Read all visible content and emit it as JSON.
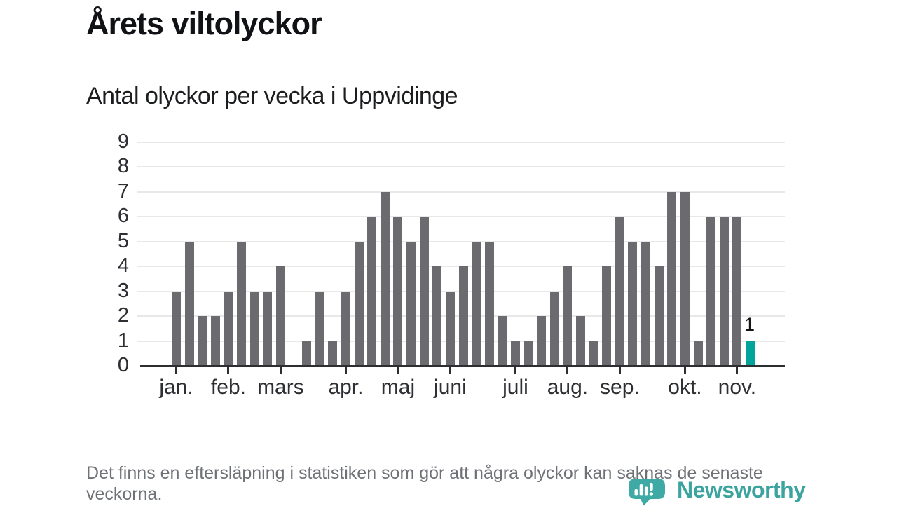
{
  "header": {
    "title": "Årets viltolyckor",
    "subtitle": "Antal olyckor per vecka i Uppvidinge"
  },
  "chart_data": {
    "type": "bar",
    "title": "Årets viltolyckor",
    "subtitle": "Antal olyckor per vecka i Uppvidinge",
    "x_unit": "vecka (week)",
    "ylabel": "",
    "ylim": [
      0,
      9
    ],
    "y_ticks": [
      0,
      1,
      2,
      3,
      4,
      5,
      6,
      7,
      8,
      9
    ],
    "grid": "horizontal",
    "values": [
      3,
      5,
      2,
      2,
      3,
      5,
      3,
      3,
      4,
      0,
      1,
      3,
      1,
      3,
      5,
      6,
      7,
      6,
      5,
      6,
      4,
      3,
      4,
      5,
      5,
      2,
      1,
      1,
      2,
      3,
      4,
      2,
      1,
      4,
      6,
      5,
      5,
      4,
      7,
      7,
      1,
      6,
      6,
      6,
      1
    ],
    "month_ticks": [
      {
        "label": "jan.",
        "week_index": 0
      },
      {
        "label": "feb.",
        "week_index": 4
      },
      {
        "label": "mars",
        "week_index": 8
      },
      {
        "label": "apr.",
        "week_index": 13
      },
      {
        "label": "maj",
        "week_index": 17
      },
      {
        "label": "juni",
        "week_index": 21
      },
      {
        "label": "juli",
        "week_index": 26
      },
      {
        "label": "aug.",
        "week_index": 30
      },
      {
        "label": "sep.",
        "week_index": 34
      },
      {
        "label": "okt.",
        "week_index": 39
      },
      {
        "label": "nov.",
        "week_index": 43
      }
    ],
    "highlight_last_bar": true,
    "last_bar_label": "1",
    "colors": {
      "bar": "#6a6a6f",
      "highlight": "#00a49b",
      "gridline": "#e8e8e8",
      "axis": "#2d2e30"
    }
  },
  "footer": {
    "note": "Det finns en eftersläpning i statistiken som gör att några olyckor kan saknas de senaste veckorna."
  },
  "branding": {
    "logo_text": "Newsworthy",
    "logo_icon": "newsworthy-speech-bubble-chart-icon",
    "logo_color": "#3ca49f"
  }
}
